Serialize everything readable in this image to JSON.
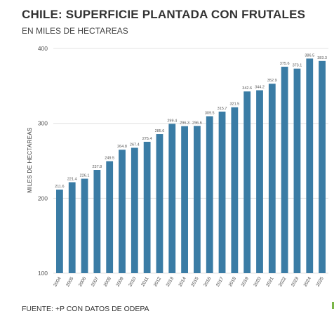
{
  "chart_data": {
    "type": "bar",
    "title": "CHILE: SUPERFICIE PLANTADA CON FRUTALES",
    "subtitle": "EN MILES DE HECTAREAS",
    "ylabel": "MILES DE HECTAREAS",
    "xlabel": "",
    "source": "FUENTE: +P CON DATOS DE ODEPA",
    "categories": [
      "2004",
      "2005",
      "2006",
      "2007",
      "2008",
      "2009",
      "2010",
      "2011",
      "2012",
      "2013",
      "2014",
      "2015",
      "2016",
      "2017",
      "2018",
      "2019",
      "2020",
      "2021",
      "2022",
      "2023",
      "2024",
      "2025"
    ],
    "values": [
      211.6,
      221.4,
      226.1,
      237.8,
      249.5,
      264.8,
      267.4,
      275.4,
      285.6,
      299.4,
      296.3,
      296.6,
      309.5,
      315.7,
      321.5,
      342.6,
      344.2,
      352.9,
      375.6,
      373.1,
      386.5,
      383.3
    ],
    "value_labels": [
      "211.6",
      "221.4",
      "226.1",
      "237.8",
      "249.5",
      "264.8",
      "267.4",
      "275.4",
      "285.6",
      "299.4",
      "296.3",
      "296.6",
      "309.5",
      "315.7",
      "321.5",
      "342.6",
      "344.2",
      "352.9",
      "375.6",
      "373.1",
      "386.5",
      "383.3"
    ],
    "ylim": [
      100,
      400
    ],
    "yticks": [
      "100",
      "200",
      "300",
      "400"
    ],
    "grid": true,
    "legend": "none",
    "bar_color": "#3a7ca5"
  }
}
